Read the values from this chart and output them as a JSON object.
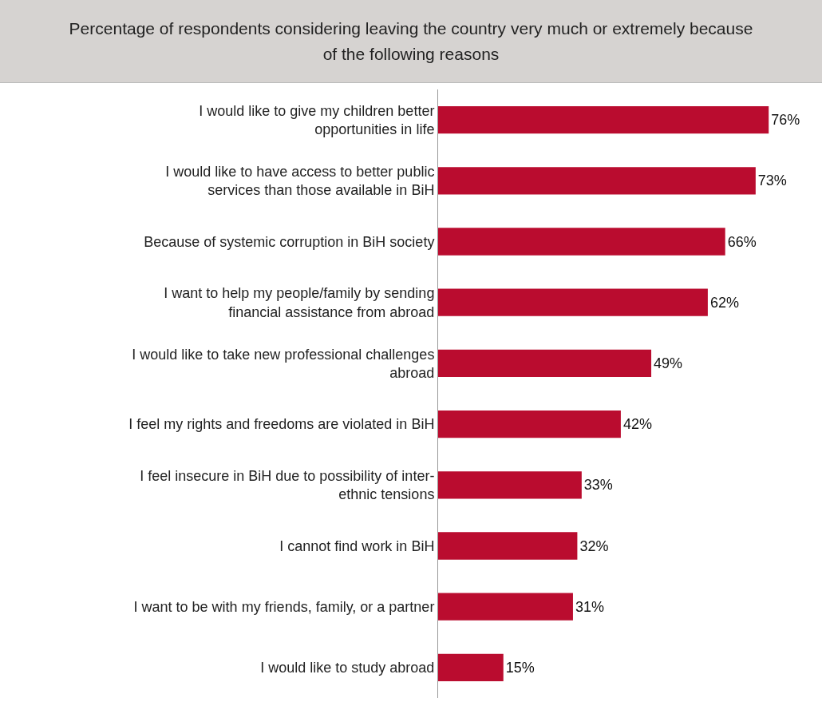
{
  "chart_data": {
    "type": "bar",
    "orientation": "horizontal",
    "title": "Percentage of respondents considering leaving the country very much or extremely because of the following reasons",
    "categories": [
      "I would like to give my children better opportunities in life",
      "I would like to have access to better public services than those available in BiH",
      "Because of systemic corruption in BiH society",
      "I want to help my people/family by sending financial assistance from abroad",
      "I would like to take new professional challenges abroad",
      "I feel my rights and freedoms are violated in BiH",
      "I feel insecure in BiH due to possibility of inter-ethnic tensions",
      "I cannot find work in BiH",
      "I want to be with my friends, family, or a partner",
      "I would like to study abroad"
    ],
    "values": [
      76,
      73,
      66,
      62,
      49,
      42,
      33,
      32,
      31,
      15
    ],
    "value_labels": [
      "76%",
      "73%",
      "66%",
      "62%",
      "49%",
      "42%",
      "33%",
      "32%",
      "31%",
      "15%"
    ],
    "color": "#ba0c2f"
  }
}
